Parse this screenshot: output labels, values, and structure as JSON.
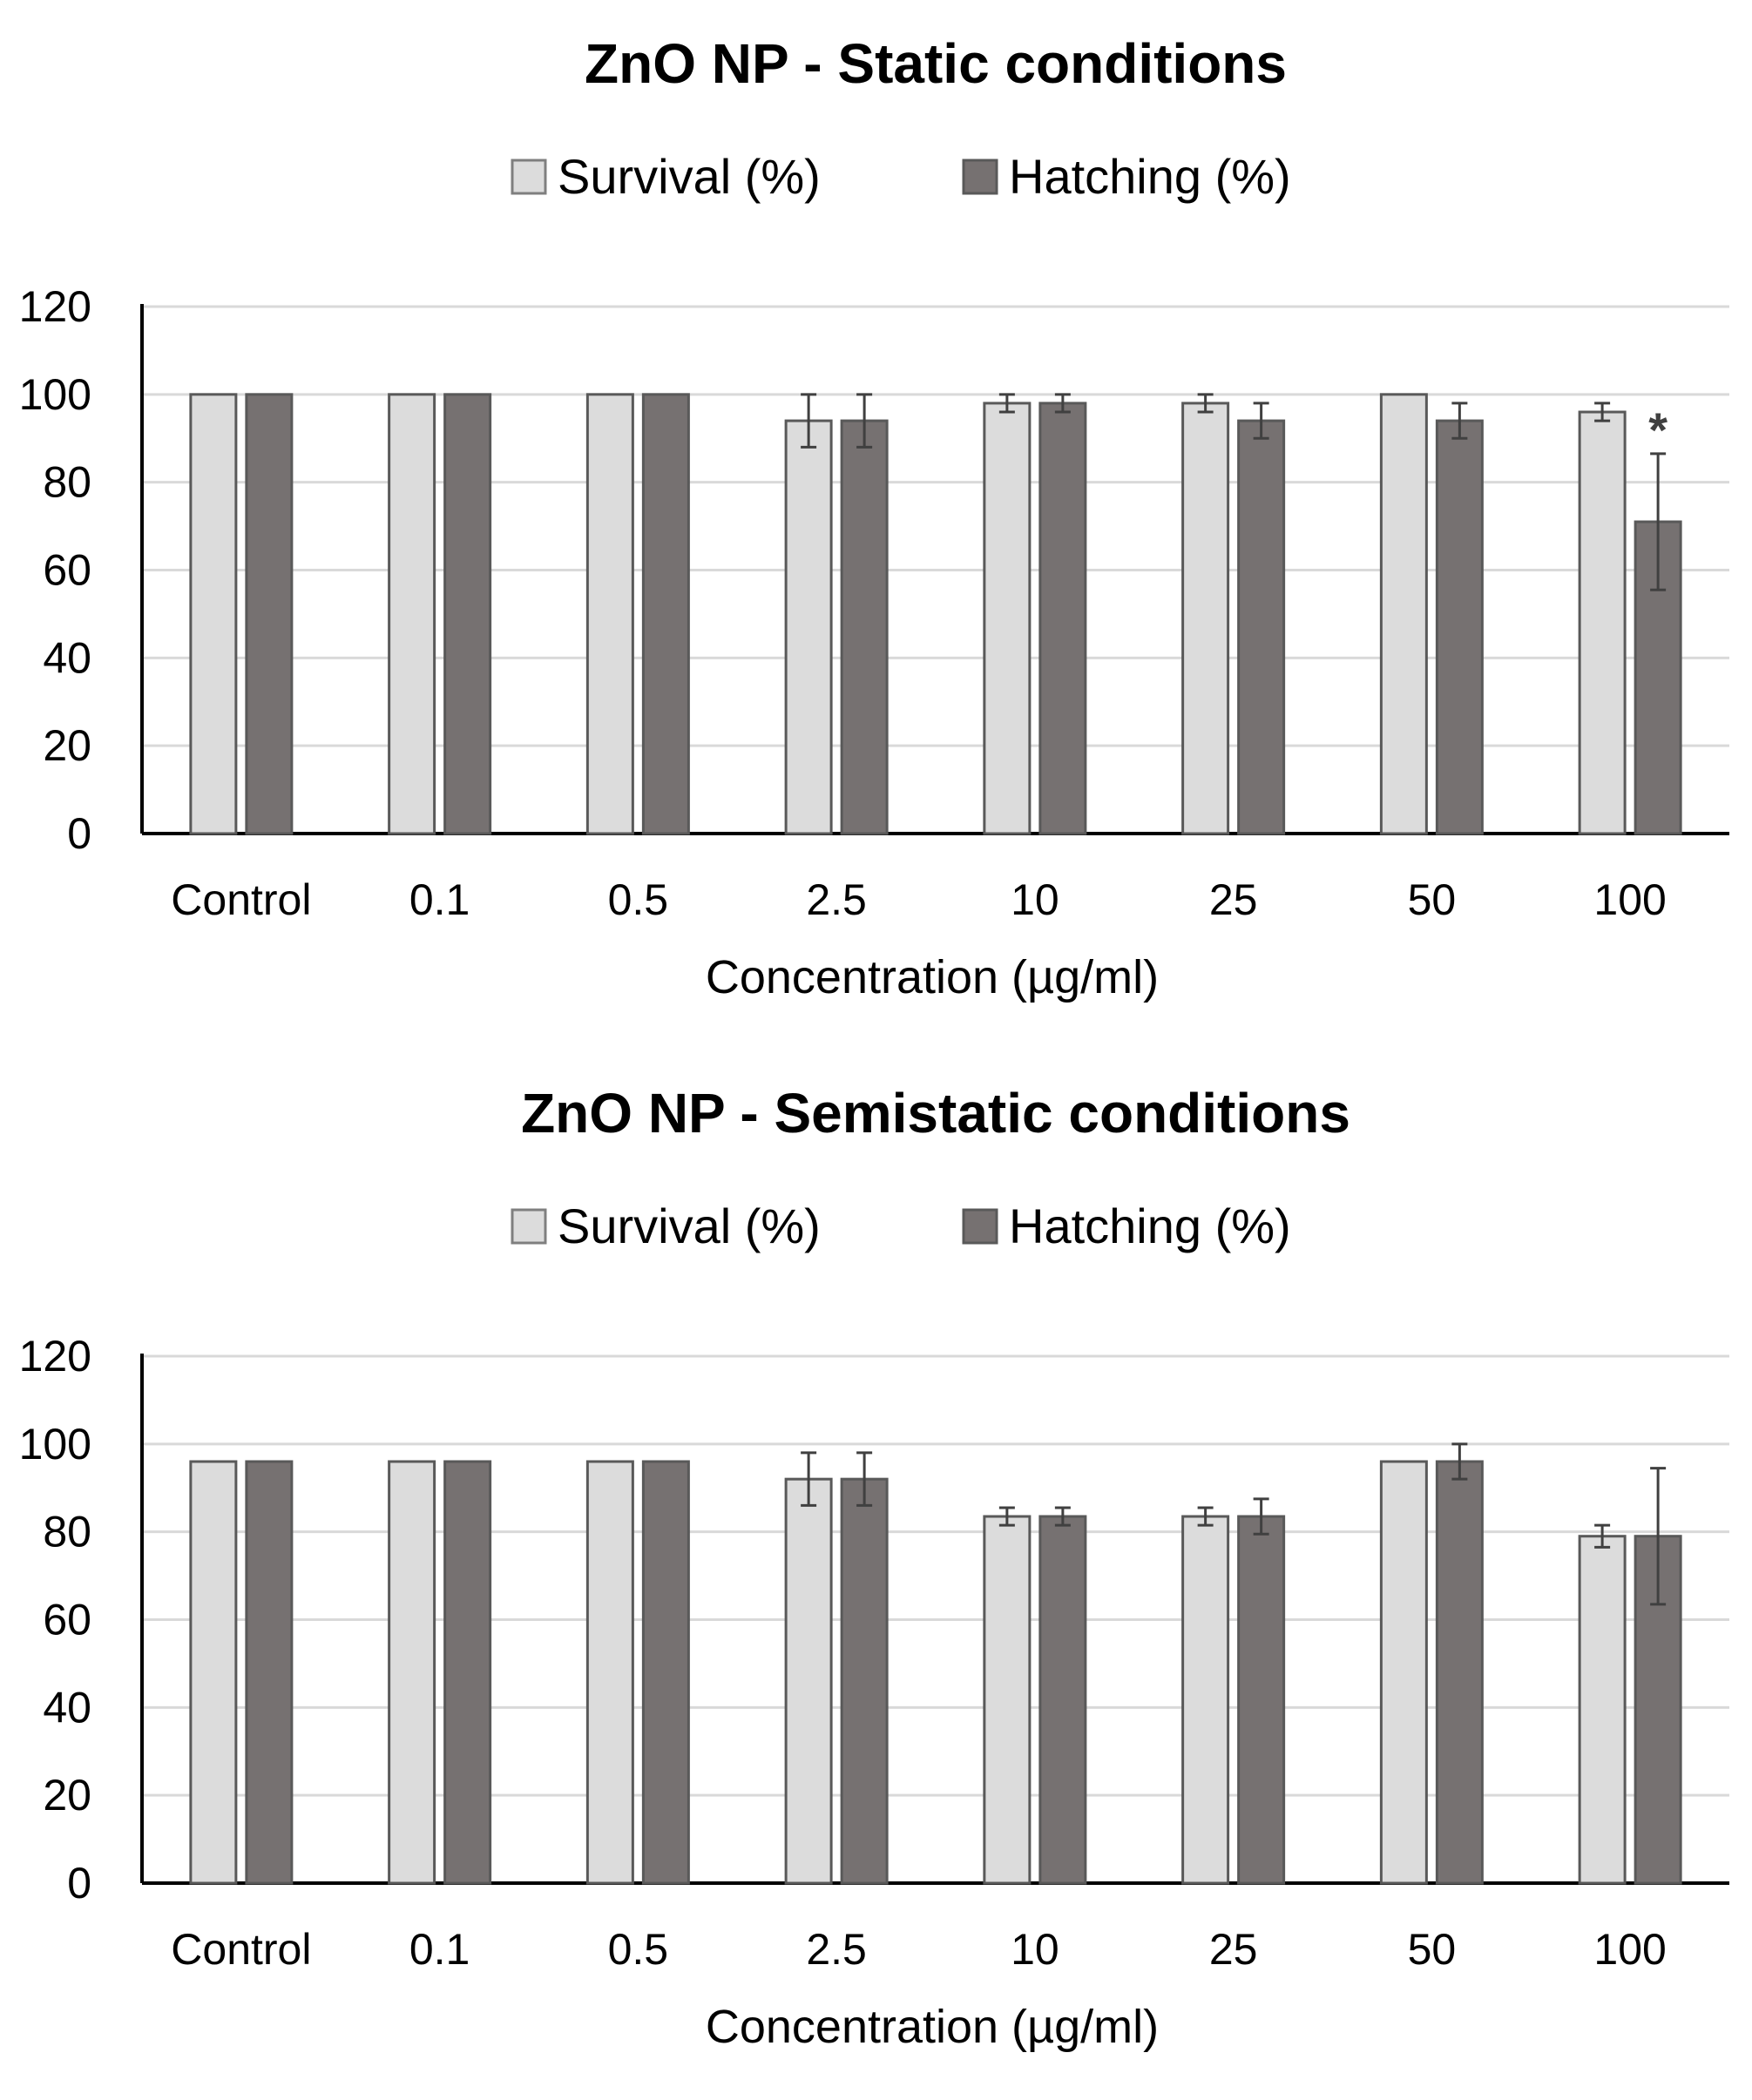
{
  "colors": {
    "survival": "#dcdcdc",
    "hatching": "#767171",
    "survival_stroke": "#7f7f7f",
    "hatching_stroke": "#595959"
  },
  "chart_data": [
    {
      "type": "bar",
      "title": "ZnO NP - Static conditions",
      "xlabel": "Concentration (µg/ml)",
      "ylabel": "",
      "ylim": [
        0,
        120
      ],
      "yticks": [
        "0",
        "20",
        "40",
        "60",
        "80",
        "100",
        "120"
      ],
      "grid": true,
      "legend": "top-center",
      "categories": [
        "Control",
        "0.1",
        "0.5",
        "2.5",
        "10",
        "25",
        "50",
        "100"
      ],
      "series": [
        {
          "name": "Survival (%)",
          "values": [
            100,
            100,
            100,
            94,
            98,
            98,
            100,
            96
          ],
          "errors": [
            0,
            0,
            0,
            6,
            2,
            2,
            0,
            2
          ]
        },
        {
          "name": "Hatching (%)",
          "values": [
            100,
            100,
            100,
            94,
            98,
            94,
            94,
            71
          ],
          "errors": [
            0,
            0,
            0,
            6,
            2,
            4,
            4,
            15.5
          ]
        }
      ],
      "annotations": [
        {
          "category": "100",
          "series": "Hatching (%)",
          "text": "*"
        }
      ]
    },
    {
      "type": "bar",
      "title": "ZnO NP - Semistatic conditions",
      "xlabel": "Concentration (µg/ml)",
      "ylabel": "",
      "ylim": [
        0,
        120
      ],
      "yticks": [
        "0",
        "20",
        "40",
        "60",
        "80",
        "100",
        "120"
      ],
      "grid": true,
      "legend": "top-center",
      "categories": [
        "Control",
        "0.1",
        "0.5",
        "2.5",
        "10",
        "25",
        "50",
        "100"
      ],
      "series": [
        {
          "name": "Survival (%)",
          "values": [
            96,
            96,
            96,
            92,
            83.5,
            83.5,
            96,
            79
          ],
          "errors": [
            0,
            0,
            0,
            6,
            2,
            2,
            0,
            2.5
          ]
        },
        {
          "name": "Hatching (%)",
          "values": [
            96,
            96,
            96,
            92,
            83.5,
            83.5,
            96,
            79
          ],
          "errors": [
            0,
            0,
            0,
            6,
            2,
            4,
            4,
            15.5
          ]
        }
      ],
      "annotations": []
    }
  ]
}
